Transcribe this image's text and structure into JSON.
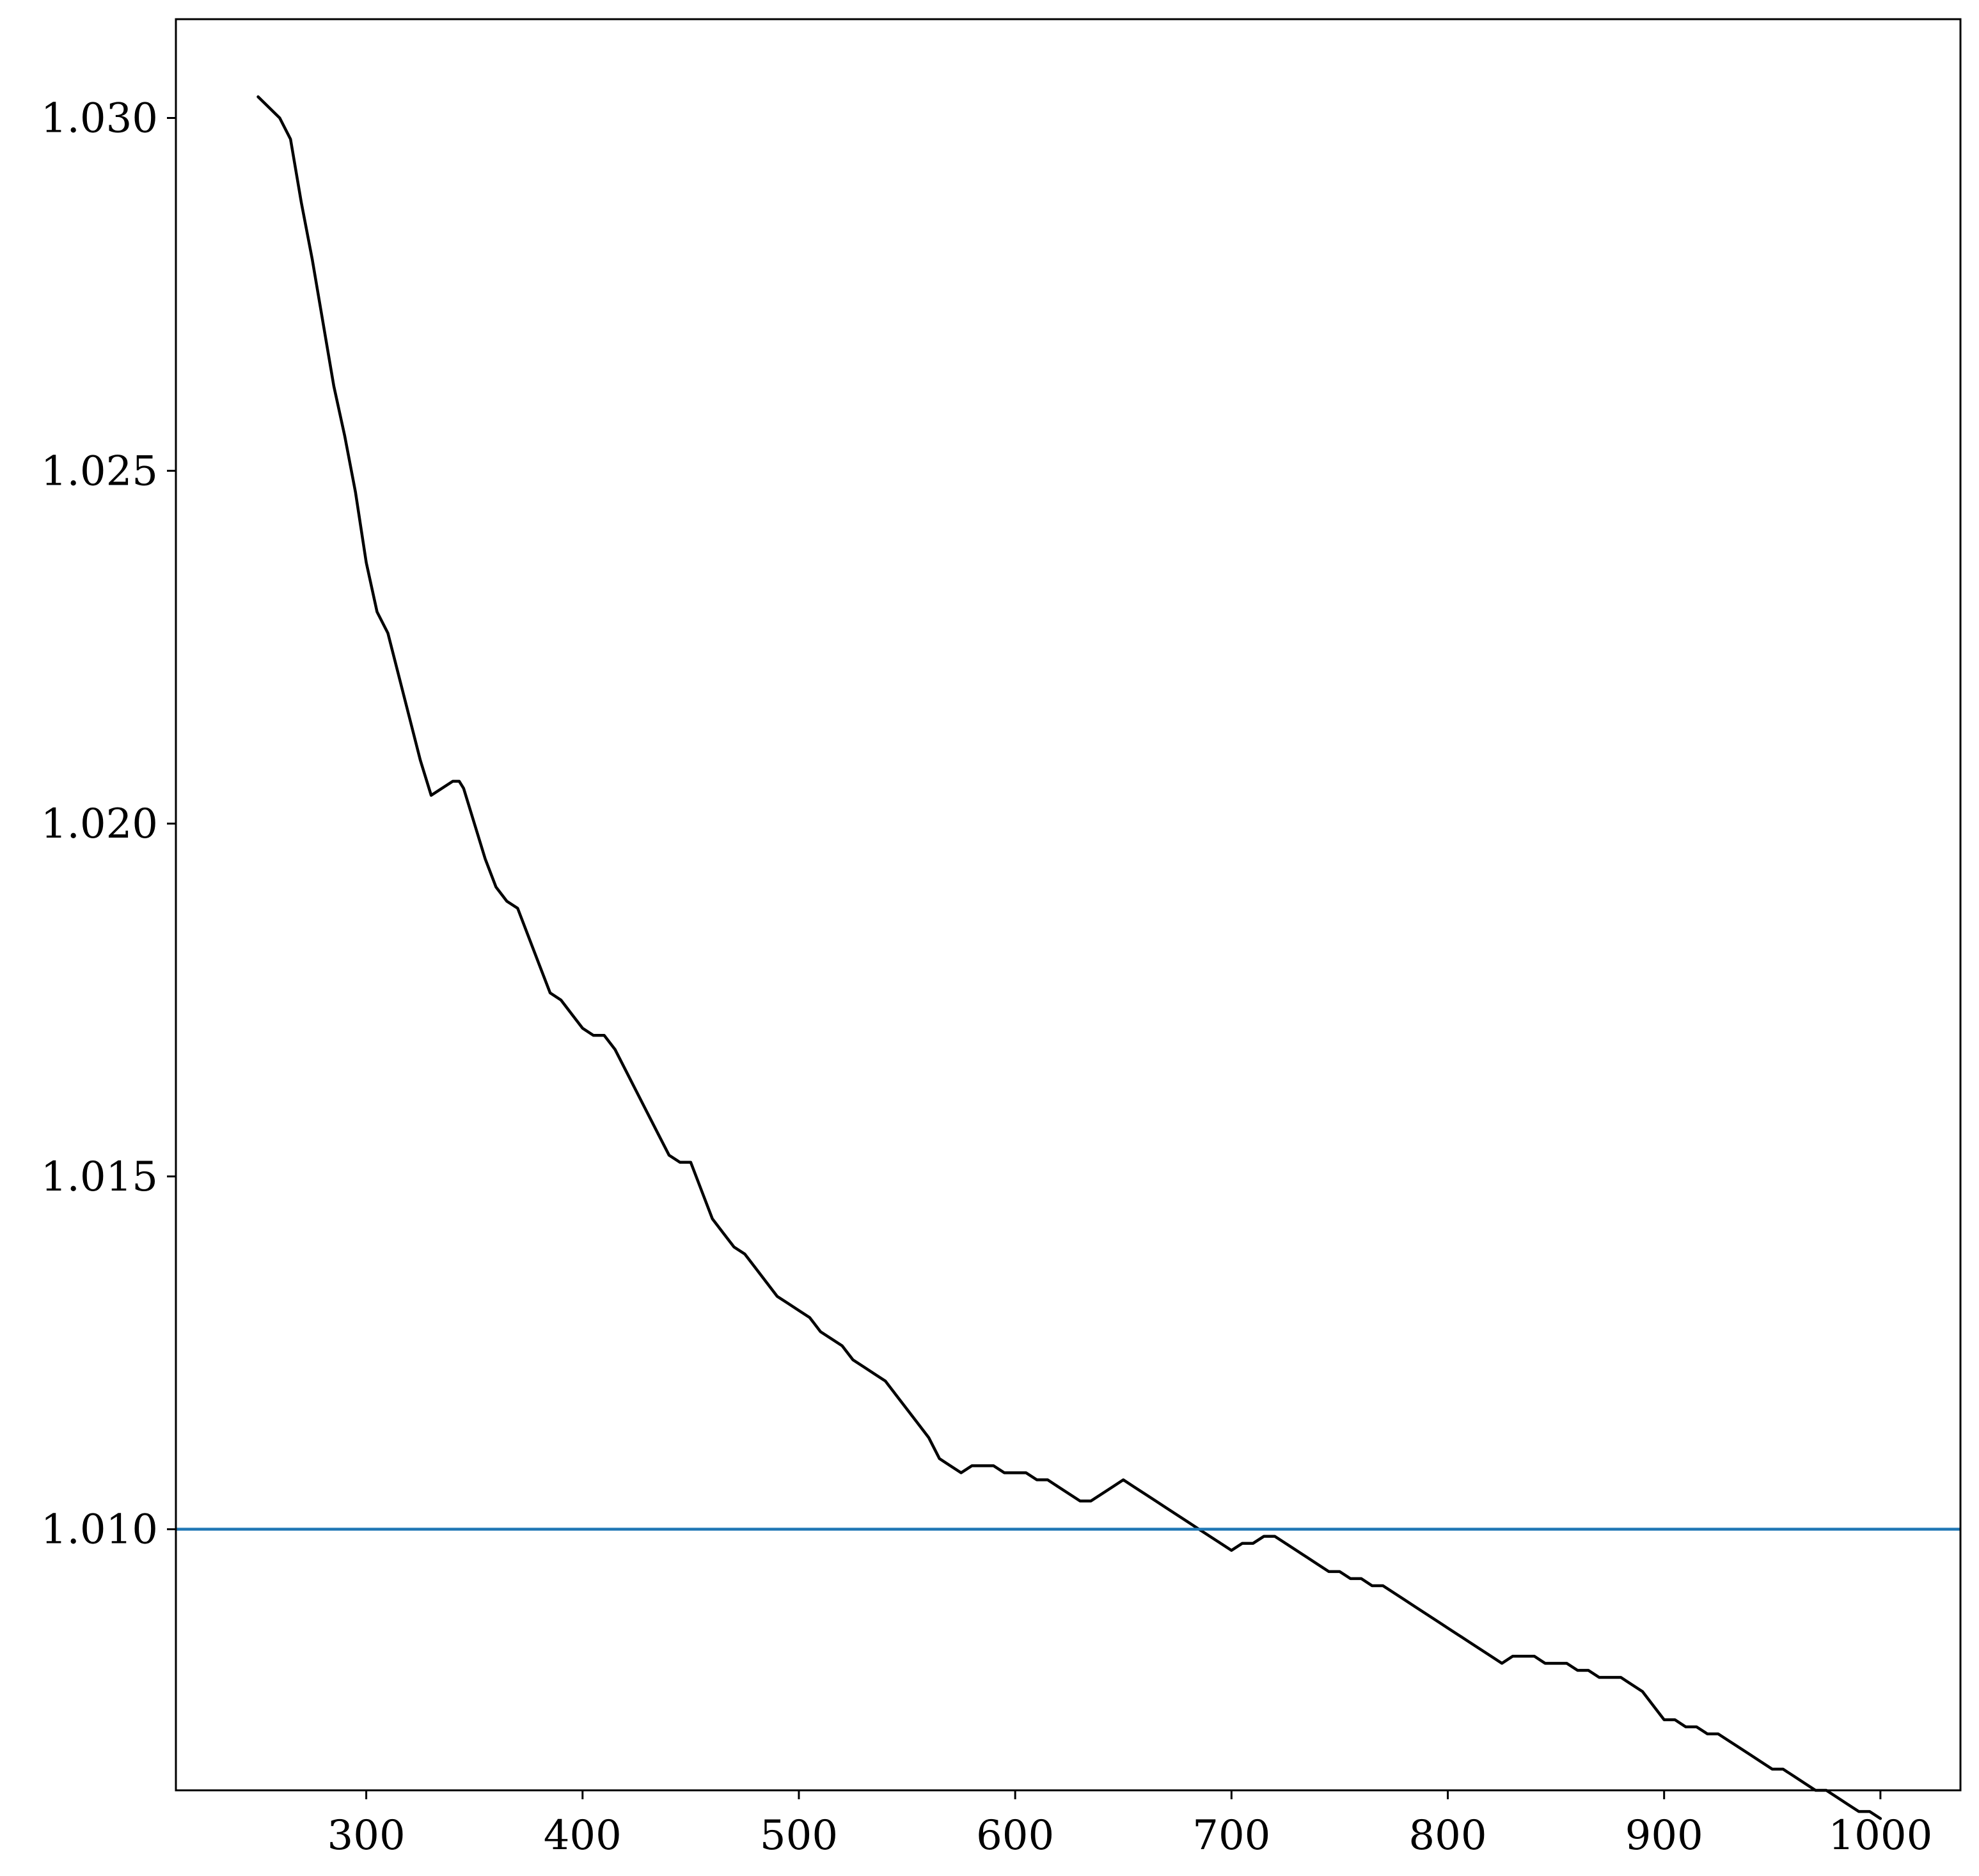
{
  "chart_data": {
    "type": "line",
    "title": "",
    "xlabel": "",
    "ylabel": "",
    "xlim": [
      212,
      1037
    ],
    "ylim": [
      1.0063,
      1.0314
    ],
    "x_ticks": [
      {
        "value": 300,
        "label": "300"
      },
      {
        "value": 400,
        "label": "400"
      },
      {
        "value": 500,
        "label": "500"
      },
      {
        "value": 600,
        "label": "600"
      },
      {
        "value": 700,
        "label": "700"
      },
      {
        "value": 800,
        "label": "800"
      },
      {
        "value": 900,
        "label": "900"
      },
      {
        "value": 1000,
        "label": "1000"
      }
    ],
    "y_ticks": [
      {
        "value": 1.01,
        "label": "1.010"
      },
      {
        "value": 1.015,
        "label": "1.015"
      },
      {
        "value": 1.02,
        "label": "1.020"
      },
      {
        "value": 1.025,
        "label": "1.025"
      },
      {
        "value": 1.03,
        "label": "1.030"
      }
    ],
    "grid": false,
    "legend": "none",
    "series": [
      {
        "color": "#000000",
        "x": [
          250,
          260,
          265,
          270,
          275,
          280,
          285,
          290,
          295,
          300,
          305,
          310,
          315,
          320,
          325,
          330,
          335,
          340,
          343,
          345,
          350,
          355,
          360,
          365,
          370,
          375,
          380,
          385,
          390,
          395,
          400,
          405,
          410,
          415,
          420,
          425,
          430,
          435,
          440,
          445,
          450,
          455,
          460,
          465,
          470,
          475,
          480,
          485,
          490,
          495,
          500,
          505,
          510,
          515,
          520,
          525,
          530,
          535,
          540,
          545,
          550,
          555,
          560,
          565,
          570,
          575,
          580,
          585,
          590,
          595,
          600,
          605,
          610,
          615,
          620,
          625,
          630,
          635,
          640,
          645,
          650,
          655,
          660,
          665,
          670,
          675,
          680,
          685,
          690,
          695,
          700,
          705,
          710,
          715,
          720,
          725,
          730,
          735,
          740,
          745,
          750,
          755,
          760,
          765,
          770,
          775,
          780,
          785,
          790,
          795,
          800,
          805,
          810,
          815,
          820,
          825,
          830,
          835,
          840,
          845,
          850,
          855,
          860,
          865,
          870,
          875,
          880,
          885,
          890,
          895,
          900,
          905,
          910,
          915,
          920,
          925,
          930,
          935,
          940,
          945,
          950,
          955,
          960,
          965,
          970,
          975,
          980,
          985,
          990,
          995,
          1000
        ],
        "y": [
          1.0303,
          1.03,
          1.0297,
          1.0288,
          1.028,
          1.0271,
          1.0262,
          1.0255,
          1.0247,
          1.0237,
          1.023,
          1.0227,
          1.0221,
          1.0215,
          1.0209,
          1.0204,
          1.0205,
          1.0206,
          1.0206,
          1.0205,
          1.02,
          1.0195,
          1.0191,
          1.0189,
          1.0188,
          1.0184,
          1.018,
          1.0176,
          1.0175,
          1.0173,
          1.0171,
          1.017,
          1.017,
          1.0168,
          1.0165,
          1.0162,
          1.0159,
          1.0156,
          1.0153,
          1.0152,
          1.0152,
          1.0148,
          1.0144,
          1.0142,
          1.014,
          1.0139,
          1.0137,
          1.0135,
          1.0133,
          1.0132,
          1.0131,
          1.013,
          1.0128,
          1.0127,
          1.0126,
          1.0124,
          1.0123,
          1.0122,
          1.0121,
          1.0119,
          1.0117,
          1.0115,
          1.0113,
          1.011,
          1.0109,
          1.0108,
          1.0109,
          1.0109,
          1.0109,
          1.0108,
          1.0108,
          1.0108,
          1.0107,
          1.0107,
          1.0106,
          1.0105,
          1.0104,
          1.0104,
          1.0105,
          1.0106,
          1.0107,
          1.0106,
          1.0105,
          1.0104,
          1.0103,
          1.0102,
          1.0101,
          1.01,
          1.0099,
          1.0098,
          1.0097,
          1.0098,
          1.0098,
          1.0099,
          1.0099,
          1.0098,
          1.0097,
          1.0096,
          1.0095,
          1.0094,
          1.0094,
          1.0093,
          1.0093,
          1.0092,
          1.0092,
          1.0091,
          1.009,
          1.0089,
          1.0088,
          1.0087,
          1.0086,
          1.0085,
          1.0084,
          1.0083,
          1.0082,
          1.0081,
          1.0082,
          1.0082,
          1.0082,
          1.0081,
          1.0081,
          1.0081,
          1.008,
          1.008,
          1.0079,
          1.0079,
          1.0079,
          1.0078,
          1.0077,
          1.0075,
          1.0073,
          1.0073,
          1.0072,
          1.0072,
          1.0071,
          1.0071,
          1.007,
          1.0069,
          1.0068,
          1.0067,
          1.0066,
          1.0066,
          1.0065,
          1.0064,
          1.0063,
          1.0063,
          1.0062,
          1.0061,
          1.006,
          1.006,
          1.0059
        ]
      }
    ],
    "reference_lines": [
      {
        "type": "horizontal",
        "y": 1.01,
        "color": "#1f77b4"
      }
    ]
  }
}
